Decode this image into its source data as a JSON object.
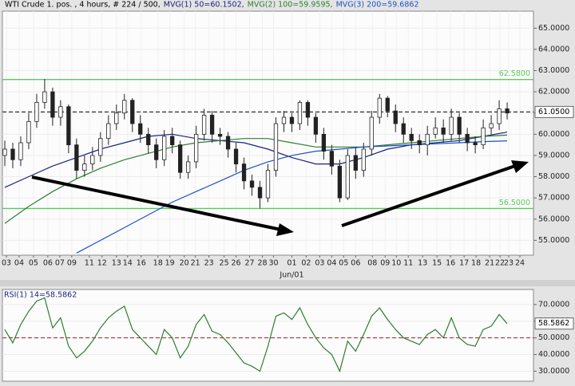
{
  "chart_data": [
    {
      "type": "candlestick",
      "header": [
        "WTI Crude 1. pos. , 4 hours, # 224 / 500,",
        "MVG(1) 50=60.1502,",
        "MVG(2) 100=59.9595,",
        "MVG(3) 200=59.6862"
      ],
      "header_colors": [
        "#000000",
        "#1a237e",
        "#2e7d32",
        "#1e50c8"
      ],
      "open": [
        59.0,
        59.3,
        58.8,
        59.6,
        60.6,
        61.5,
        62.0,
        60.8,
        61.3,
        59.5,
        58.3,
        58.6,
        59.0,
        59.8,
        60.5,
        61.0,
        61.6,
        60.5,
        60.0,
        59.5,
        58.8,
        59.9,
        59.5,
        58.2,
        58.7,
        60.0,
        60.9,
        60.0,
        59.9,
        59.3,
        58.6,
        57.8,
        57.5,
        57.0,
        58.3,
        60.5,
        60.8,
        60.5,
        61.5,
        60.8,
        60.0,
        59.2,
        58.5,
        57.0,
        59.0,
        58.3,
        59.3,
        60.8,
        61.7,
        61.1,
        60.5,
        60.0,
        59.7,
        59.5,
        60.0,
        60.3,
        60.0,
        60.8,
        60.0,
        59.6,
        59.5,
        60.3,
        60.5,
        61.2
      ],
      "high": [
        59.7,
        59.6,
        59.9,
        61.0,
        61.9,
        62.6,
        62.2,
        61.6,
        61.4,
        59.8,
        59.0,
        59.4,
        60.1,
        60.9,
        61.4,
        61.9,
        61.7,
        60.9,
        60.3,
        59.8,
        60.2,
        60.3,
        59.7,
        59.0,
        60.4,
        61.2,
        61.1,
        60.3,
        60.1,
        59.6,
        58.9,
        58.1,
        57.8,
        58.6,
        60.8,
        61.1,
        61.0,
        61.6,
        61.6,
        61.0,
        60.3,
        59.5,
        58.8,
        59.3,
        59.4,
        59.6,
        61.1,
        61.9,
        61.8,
        61.4,
        60.8,
        60.3,
        60.0,
        60.4,
        60.8,
        60.7,
        61.2,
        61.0,
        60.3,
        59.9,
        60.7,
        60.9,
        61.6,
        61.5
      ],
      "low": [
        58.5,
        58.4,
        58.5,
        59.3,
        60.3,
        61.2,
        60.4,
        60.4,
        59.1,
        57.9,
        58.0,
        58.3,
        58.7,
        59.5,
        60.2,
        60.7,
        60.1,
        59.6,
        59.1,
        58.4,
        58.5,
        59.1,
        57.9,
        57.9,
        58.4,
        59.7,
        59.6,
        59.5,
        58.9,
        58.2,
        57.4,
        57.1,
        56.5,
        56.8,
        58.0,
        60.1,
        60.1,
        60.2,
        60.4,
        59.6,
        58.8,
        58.1,
        56.8,
        56.9,
        57.9,
        58.0,
        59.0,
        60.5,
        60.8,
        60.1,
        59.6,
        59.3,
        59.1,
        59.0,
        59.8,
        59.6,
        59.7,
        59.6,
        59.2,
        59.1,
        59.3,
        60.0,
        60.2,
        60.7
      ],
      "close": [
        59.3,
        58.8,
        59.6,
        60.6,
        61.5,
        62.0,
        60.8,
        61.3,
        59.5,
        58.3,
        58.6,
        59.0,
        59.8,
        60.5,
        61.0,
        61.6,
        60.5,
        60.0,
        59.5,
        58.8,
        59.9,
        59.5,
        58.2,
        58.7,
        60.0,
        60.9,
        60.0,
        59.9,
        59.3,
        58.6,
        57.8,
        57.5,
        57.0,
        58.3,
        60.5,
        60.8,
        60.5,
        61.5,
        60.8,
        60.0,
        59.2,
        58.5,
        57.0,
        59.0,
        58.3,
        59.3,
        60.8,
        61.7,
        61.1,
        60.5,
        60.0,
        59.7,
        59.5,
        60.0,
        60.3,
        60.0,
        60.8,
        60.0,
        59.6,
        59.5,
        60.3,
        60.5,
        61.2,
        61.0
      ],
      "series": [
        {
          "name": "MVG(1) 50",
          "color": "#1a237e",
          "x": [
            0,
            3,
            6,
            9,
            12,
            15,
            18,
            21,
            24,
            27,
            30,
            33,
            36,
            39,
            42,
            45,
            48,
            51,
            54,
            57,
            60,
            63
          ],
          "values": [
            57.5,
            58.0,
            58.5,
            58.9,
            59.3,
            59.6,
            59.9,
            60.0,
            59.8,
            59.7,
            59.6,
            59.3,
            58.9,
            58.6,
            58.6,
            58.9,
            59.3,
            59.5,
            59.6,
            59.7,
            59.9,
            60.1
          ]
        },
        {
          "name": "MVG(2) 100",
          "color": "#2e7d32",
          "x": [
            0,
            3,
            6,
            9,
            12,
            15,
            18,
            21,
            24,
            27,
            30,
            33,
            36,
            39,
            42,
            45,
            48,
            51,
            54,
            57,
            60,
            63
          ],
          "values": [
            55.8,
            56.6,
            57.3,
            57.9,
            58.4,
            58.8,
            59.1,
            59.4,
            59.6,
            59.7,
            59.8,
            59.8,
            59.6,
            59.4,
            59.4,
            59.4,
            59.5,
            59.6,
            59.7,
            59.8,
            59.9,
            59.96
          ]
        },
        {
          "name": "MVG(3) 200",
          "color": "#1e50c8",
          "x": [
            0,
            3,
            6,
            9,
            12,
            15,
            18,
            21,
            24,
            27,
            30,
            33,
            36,
            39,
            42,
            45,
            48,
            51,
            54,
            57,
            60,
            63
          ],
          "values": [
            null,
            null,
            null,
            54.4,
            55.0,
            55.6,
            56.2,
            56.8,
            57.3,
            57.8,
            58.3,
            58.7,
            59.0,
            59.2,
            59.3,
            59.4,
            59.45,
            59.5,
            59.55,
            59.6,
            59.65,
            59.69
          ]
        }
      ],
      "hlines": [
        {
          "value": 62.58,
          "label": "62.5800",
          "color": "#5ec85e",
          "style": "solid"
        },
        {
          "value": 56.5,
          "label": "56.5000",
          "color": "#5ec85e",
          "style": "solid"
        },
        {
          "value": 61.05,
          "label": "61.0500",
          "color": "#333333",
          "style": "dashed"
        }
      ],
      "xlim": [
        -0.3,
        66.3
      ],
      "ylim": [
        54.3,
        65.8
      ],
      "yticks": [
        {
          "value": 55,
          "label": "55.0000"
        },
        {
          "value": 56,
          "label": "56.0000"
        },
        {
          "value": 57,
          "label": "57.0000"
        },
        {
          "value": 58,
          "label": "58.0000"
        },
        {
          "value": 59,
          "label": "59.0000"
        },
        {
          "value": 60,
          "label": "60.0000"
        },
        {
          "value": 61,
          "label": "61.0000"
        },
        {
          "value": 62,
          "label": "62.0000"
        },
        {
          "value": 63,
          "label": "63.0000"
        },
        {
          "value": 64,
          "label": "64.0000"
        },
        {
          "value": 65,
          "label": "65.0000"
        }
      ],
      "xticks": [
        {
          "value": 0.2,
          "label": "03"
        },
        {
          "value": 1.8,
          "label": "04"
        },
        {
          "value": 3.6,
          "label": "05"
        },
        {
          "value": 5.4,
          "label": "06"
        },
        {
          "value": 6.9,
          "label": "07"
        },
        {
          "value": 8.4,
          "label": "09"
        },
        {
          "value": 10.6,
          "label": "11"
        },
        {
          "value": 12.2,
          "label": "12"
        },
        {
          "value": 14,
          "label": "13"
        },
        {
          "value": 15.4,
          "label": "14"
        },
        {
          "value": 17.1,
          "label": "16"
        },
        {
          "value": 19.2,
          "label": "18"
        },
        {
          "value": 20.7,
          "label": "19"
        },
        {
          "value": 22.5,
          "label": "20"
        },
        {
          "value": 23.9,
          "label": "21"
        },
        {
          "value": 25.6,
          "label": "23"
        },
        {
          "value": 27.5,
          "label": "25"
        },
        {
          "value": 29,
          "label": "26"
        },
        {
          "value": 30.7,
          "label": "27"
        },
        {
          "value": 32.3,
          "label": "28"
        },
        {
          "value": 33.7,
          "label": "30"
        },
        {
          "value": 36,
          "label": "01"
        },
        {
          "value": 37.8,
          "label": "02"
        },
        {
          "value": 39.5,
          "label": "03"
        },
        {
          "value": 41,
          "label": "04"
        },
        {
          "value": 42.5,
          "label": "05"
        },
        {
          "value": 44,
          "label": "06"
        },
        {
          "value": 46.1,
          "label": "08"
        },
        {
          "value": 47.7,
          "label": "09"
        },
        {
          "value": 49.1,
          "label": "10"
        },
        {
          "value": 50.6,
          "label": "11"
        },
        {
          "value": 52.4,
          "label": "13"
        },
        {
          "value": 54.2,
          "label": "15"
        },
        {
          "value": 55.9,
          "label": "16"
        },
        {
          "value": 57.6,
          "label": "17"
        },
        {
          "value": 59.1,
          "label": "18"
        },
        {
          "value": 60.8,
          "label": "21"
        },
        {
          "value": 62.1,
          "label": "22"
        },
        {
          "value": 63.2,
          "label": "23"
        },
        {
          "value": 64.6,
          "label": "24"
        }
      ],
      "x_sublabel": {
        "value": 36,
        "label": "Jun/01"
      },
      "grid": true
    },
    {
      "type": "line",
      "title": "RSI(1) 14=58.5862",
      "series": [
        {
          "name": "RSI(1) 14",
          "color": "#2e7d32",
          "values": [
            55,
            47,
            58,
            66,
            72,
            74,
            56,
            62,
            45,
            38,
            42,
            48,
            56,
            62,
            66,
            69,
            55,
            50,
            45,
            40,
            55,
            50,
            38,
            45,
            58,
            64,
            54,
            52,
            47,
            41,
            35,
            33,
            30,
            45,
            63,
            65,
            61,
            68,
            58,
            50,
            44,
            40,
            30,
            48,
            42,
            52,
            63,
            68,
            61,
            55,
            50,
            48,
            46,
            52,
            55,
            50,
            62,
            50,
            46,
            45,
            55,
            57,
            64,
            58.5862
          ]
        }
      ],
      "last_label": {
        "value": 58.5862,
        "label": "58.5862"
      },
      "hline": {
        "value": 50,
        "color": "#a02020"
      },
      "xlim": [
        -0.3,
        66.3
      ],
      "ylim": [
        24,
        79
      ],
      "yticks": [
        {
          "value": 30,
          "label": "30.0000"
        },
        {
          "value": 40,
          "label": "40.0000"
        },
        {
          "value": 50,
          "label": "50.0000"
        },
        {
          "value": 60,
          "label": "60.0000"
        },
        {
          "value": 70,
          "label": "70.0000"
        }
      ],
      "grid": true
    }
  ]
}
